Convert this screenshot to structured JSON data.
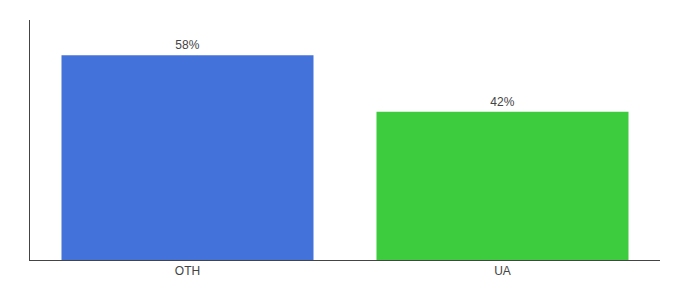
{
  "chart_data": {
    "type": "bar",
    "categories": [
      "OTH",
      "UA"
    ],
    "values": [
      58,
      42
    ],
    "value_labels": [
      "58%",
      "42%"
    ],
    "colors": [
      "#4472db",
      "#3dcc3d"
    ],
    "ylim": [
      0,
      68
    ],
    "yticks": [],
    "data_labels": true,
    "tick_labels": "x",
    "grid": false
  }
}
